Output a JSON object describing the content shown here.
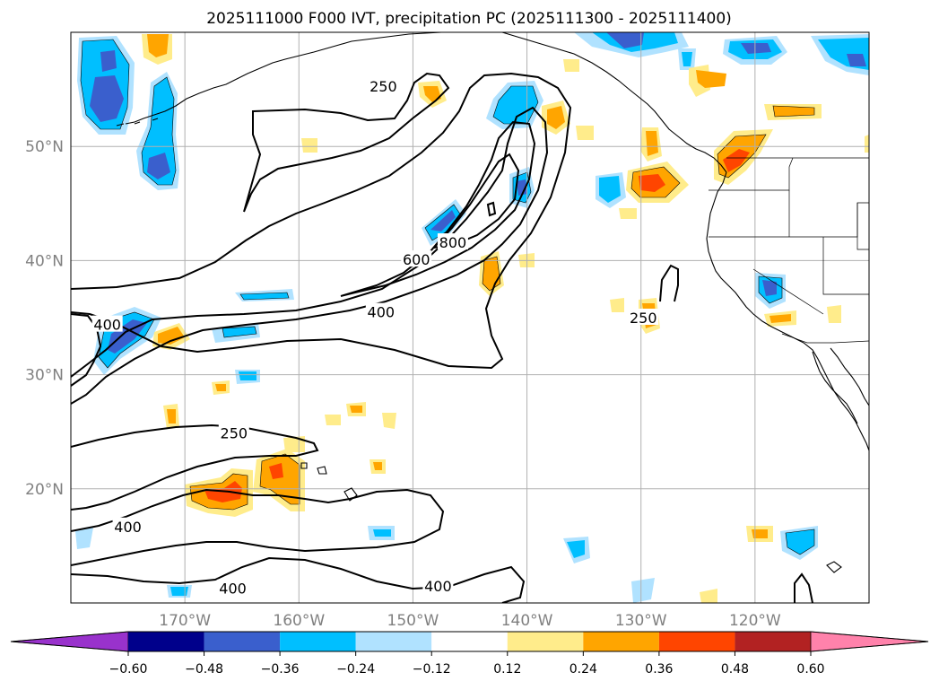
{
  "title": "2025111000 F000 IVT, precipitation PC (2025111300 - 2025111400)",
  "map": {
    "lat_labels": [
      {
        "lat": 50,
        "label": "50°N"
      },
      {
        "lat": 40,
        "label": "40°N"
      },
      {
        "lat": 30,
        "label": "30°N"
      },
      {
        "lat": 20,
        "label": "20°N"
      }
    ],
    "lon_labels": [
      {
        "lon": -170,
        "label": "170°W"
      },
      {
        "lon": -160,
        "label": "160°W"
      },
      {
        "lon": -150,
        "label": "150°W"
      },
      {
        "lon": -140,
        "label": "140°W"
      },
      {
        "lon": -130,
        "label": "130°W"
      },
      {
        "lon": -120,
        "label": "120°W"
      }
    ],
    "extent": {
      "lon_min": -180,
      "lon_max": -110,
      "lat_min": 10,
      "lat_max": 60
    },
    "ivt_contour_labels": [
      {
        "text": "250",
        "lon": -152.6,
        "lat": 55.3
      },
      {
        "text": "800",
        "lon": -146.5,
        "lat": 41.6
      },
      {
        "text": "600",
        "lon": -149.7,
        "lat": 40.1
      },
      {
        "text": "400",
        "lon": -152.8,
        "lat": 35.5
      },
      {
        "text": "400",
        "lon": -176.8,
        "lat": 34.4
      },
      {
        "text": "250",
        "lon": -129.8,
        "lat": 35.0
      },
      {
        "text": "250",
        "lon": -165.7,
        "lat": 24.9
      },
      {
        "text": "400",
        "lon": -175.0,
        "lat": 16.7
      },
      {
        "text": "400",
        "lon": -165.8,
        "lat": 11.3
      },
      {
        "text": "400",
        "lon": -147.8,
        "lat": 11.5
      }
    ]
  },
  "colorbar": {
    "ticks": [
      "−0.60",
      "−0.48",
      "−0.36",
      "−0.24",
      "−0.12",
      "0.12",
      "0.24",
      "0.36",
      "0.48",
      "0.60"
    ],
    "colors": [
      "#9932cc",
      "#00008b",
      "#3a5fcd",
      "#00bfff",
      "#b0e2ff",
      "#ffffff",
      "#ffec8b",
      "#ffa500",
      "#ff4500",
      "#b22222",
      "#ff82ab"
    ]
  },
  "colors": {
    "ocean": "#ffffff",
    "coast": "#000000",
    "grid": "#b0b0b0",
    "label_gray": "#808080"
  }
}
